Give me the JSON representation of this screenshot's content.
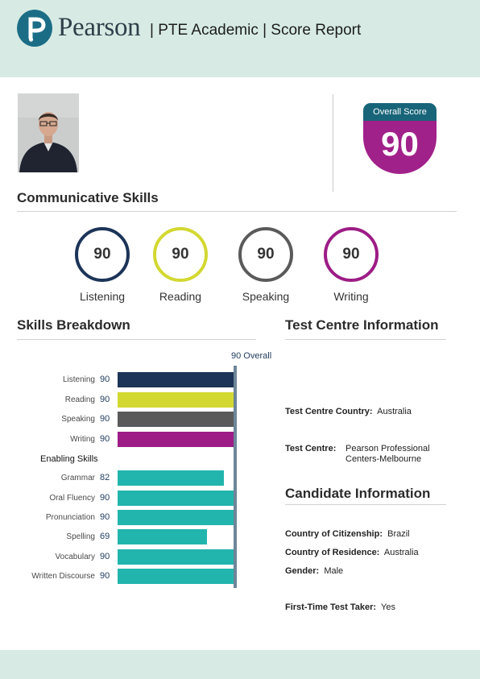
{
  "header": {
    "brand": "Pearson",
    "title": "| PTE Academic | Score Report",
    "colors": {
      "band": "#d7ebe4",
      "logo": "#1b6d86"
    }
  },
  "overall": {
    "label": "Overall Score",
    "value": "90",
    "colors": {
      "top": "#186579",
      "bottom": "#a1218a"
    }
  },
  "communicative": {
    "title": "Communicative Skills",
    "skills": [
      {
        "label": "Listening",
        "score": "90",
        "color": "#1c3458"
      },
      {
        "label": "Reading",
        "score": "90",
        "color": "#d3d831"
      },
      {
        "label": "Speaking",
        "score": "90",
        "color": "#5a5a5a"
      },
      {
        "label": "Writing",
        "score": "90",
        "color": "#9d1c86"
      }
    ]
  },
  "breakdown": {
    "title": "Skills Breakdown",
    "overall_marker": "90 Overall",
    "enabling_title": "Enabling Skills",
    "communicative_bars": [
      {
        "label": "Listening",
        "score": 90,
        "color": "#1c3458"
      },
      {
        "label": "Reading",
        "score": 90,
        "color": "#d3d831"
      },
      {
        "label": "Speaking",
        "score": 90,
        "color": "#5a5a5a"
      },
      {
        "label": "Writing",
        "score": 90,
        "color": "#9d1c86"
      }
    ],
    "enabling_bars": [
      {
        "label": "Grammar",
        "score": 82,
        "color": "#22b5ad"
      },
      {
        "label": "Oral Fluency",
        "score": 90,
        "color": "#22b5ad"
      },
      {
        "label": "Pronunciation",
        "score": 90,
        "color": "#22b5ad"
      },
      {
        "label": "Spelling",
        "score": 69,
        "color": "#22b5ad"
      },
      {
        "label": "Vocabulary",
        "score": 90,
        "color": "#22b5ad"
      },
      {
        "label": "Written Discourse",
        "score": 90,
        "color": "#22b5ad"
      }
    ],
    "scale_max": 90
  },
  "test_centre": {
    "title": "Test Centre Information",
    "country_label": "Test Centre Country:",
    "country_value": "Australia",
    "centre_label": "Test Centre:",
    "centre_value_line1": "Pearson Professional",
    "centre_value_line2": "Centers-Melbourne"
  },
  "candidate": {
    "title": "Candidate Information",
    "citizenship_label": "Country of Citizenship:",
    "citizenship_value": "Brazil",
    "residence_label": "Country of Residence:",
    "residence_value": "Australia",
    "gender_label": "Gender:",
    "gender_value": "Male",
    "first_time_label": "First-Time Test Taker:",
    "first_time_value": "Yes"
  }
}
